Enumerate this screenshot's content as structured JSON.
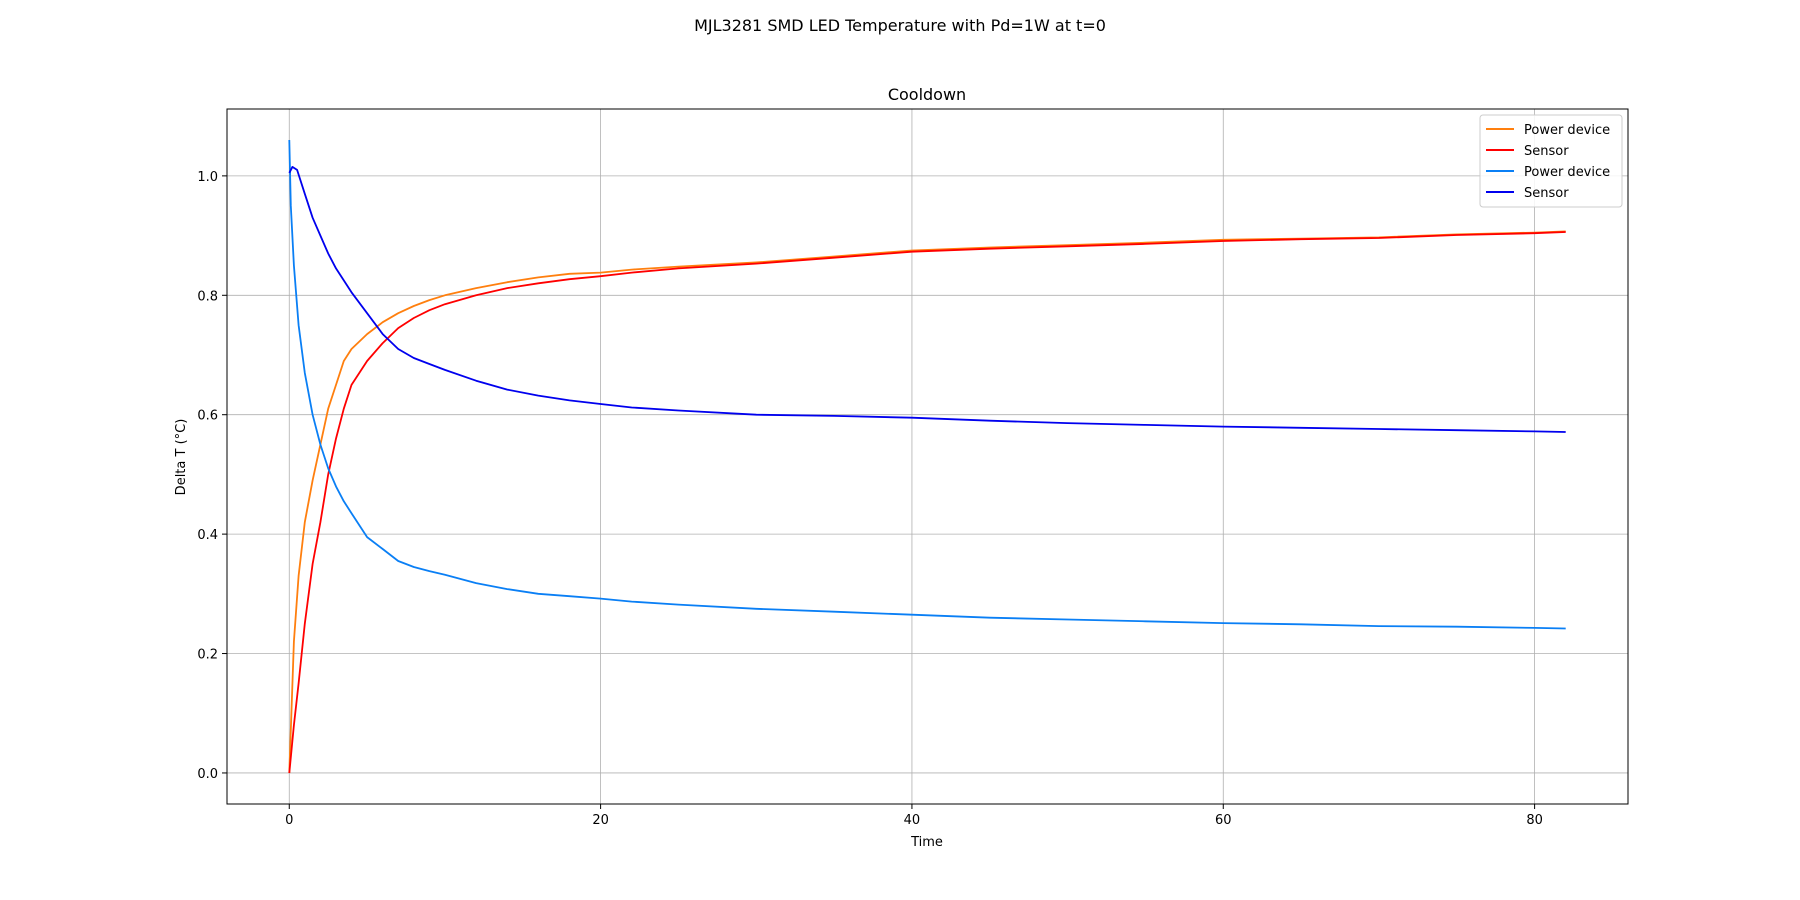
{
  "figure": {
    "suptitle": "MJL3281 SMD LED Temperature with Pd=1W at t=0"
  },
  "chart_data": {
    "type": "line",
    "title": "Cooldown",
    "xlabel": "Time",
    "ylabel": "Delta T (°C)",
    "xlim": [
      -4,
      86
    ],
    "ylim": [
      -0.052,
      1.112
    ],
    "xticks": [
      0,
      20,
      40,
      60,
      80
    ],
    "yticks": [
      0.0,
      0.2,
      0.4,
      0.6,
      0.8,
      1.0
    ],
    "xtick_labels": [
      "0",
      "20",
      "40",
      "60",
      "80"
    ],
    "ytick_labels": [
      "0.0",
      "0.2",
      "0.4",
      "0.6",
      "0.8",
      "1.0"
    ],
    "grid": true,
    "legend_position": "upper right",
    "series": [
      {
        "name": "Power device",
        "color": "#ff7f0e",
        "x": [
          0,
          0.3,
          0.6,
          1,
          1.5,
          2,
          2.5,
          3,
          3.5,
          4,
          5,
          6,
          7,
          8,
          9,
          10,
          12,
          14,
          16,
          18,
          20,
          22,
          25,
          30,
          35,
          40,
          45,
          50,
          55,
          60,
          65,
          70,
          75,
          80,
          82
        ],
        "y": [
          0.0,
          0.22,
          0.33,
          0.42,
          0.49,
          0.55,
          0.61,
          0.65,
          0.69,
          0.71,
          0.735,
          0.755,
          0.77,
          0.782,
          0.792,
          0.8,
          0.812,
          0.822,
          0.83,
          0.836,
          0.838,
          0.843,
          0.848,
          0.855,
          0.865,
          0.875,
          0.88,
          0.884,
          0.888,
          0.893,
          0.895,
          0.897,
          0.902,
          0.905,
          0.907
        ]
      },
      {
        "name": "Sensor",
        "color": "#ff0000",
        "x": [
          0,
          0.3,
          0.6,
          1,
          1.5,
          2,
          2.5,
          3,
          3.5,
          4,
          5,
          6,
          7,
          8,
          9,
          10,
          12,
          14,
          16,
          18,
          20,
          22,
          25,
          30,
          35,
          40,
          45,
          50,
          55,
          60,
          65,
          70,
          75,
          80,
          82
        ],
        "y": [
          0.0,
          0.08,
          0.15,
          0.25,
          0.35,
          0.42,
          0.5,
          0.56,
          0.61,
          0.65,
          0.69,
          0.72,
          0.745,
          0.762,
          0.775,
          0.785,
          0.8,
          0.812,
          0.82,
          0.827,
          0.832,
          0.838,
          0.845,
          0.853,
          0.863,
          0.873,
          0.878,
          0.882,
          0.886,
          0.891,
          0.894,
          0.896,
          0.901,
          0.904,
          0.906
        ]
      },
      {
        "name": "Power device",
        "color": "#0a7ff5",
        "x": [
          0,
          0.1,
          0.3,
          0.6,
          1,
          1.5,
          2,
          2.5,
          3,
          3.5,
          4,
          5,
          6,
          7,
          8,
          9,
          10,
          12,
          14,
          16,
          18,
          20,
          22,
          25,
          30,
          35,
          40,
          45,
          50,
          55,
          60,
          65,
          70,
          75,
          80,
          82
        ],
        "y": [
          1.06,
          0.95,
          0.85,
          0.75,
          0.67,
          0.6,
          0.55,
          0.51,
          0.48,
          0.455,
          0.435,
          0.395,
          0.375,
          0.355,
          0.345,
          0.338,
          0.332,
          0.318,
          0.308,
          0.3,
          0.296,
          0.292,
          0.287,
          0.282,
          0.275,
          0.27,
          0.265,
          0.26,
          0.257,
          0.254,
          0.251,
          0.249,
          0.246,
          0.245,
          0.243,
          0.242
        ]
      },
      {
        "name": "Sensor",
        "color": "#0000ee",
        "x": [
          0,
          0.2,
          0.5,
          1,
          1.5,
          2,
          2.5,
          3,
          3.5,
          4,
          5,
          6,
          7,
          8,
          9,
          10,
          12,
          14,
          16,
          18,
          20,
          22,
          25,
          30,
          35,
          40,
          45,
          50,
          55,
          60,
          65,
          70,
          75,
          80,
          82
        ],
        "y": [
          1.005,
          1.015,
          1.01,
          0.97,
          0.93,
          0.9,
          0.87,
          0.845,
          0.825,
          0.805,
          0.77,
          0.735,
          0.71,
          0.695,
          0.685,
          0.675,
          0.657,
          0.642,
          0.632,
          0.624,
          0.618,
          0.612,
          0.607,
          0.6,
          0.598,
          0.595,
          0.59,
          0.586,
          0.583,
          0.58,
          0.578,
          0.576,
          0.574,
          0.572,
          0.571
        ]
      }
    ]
  }
}
